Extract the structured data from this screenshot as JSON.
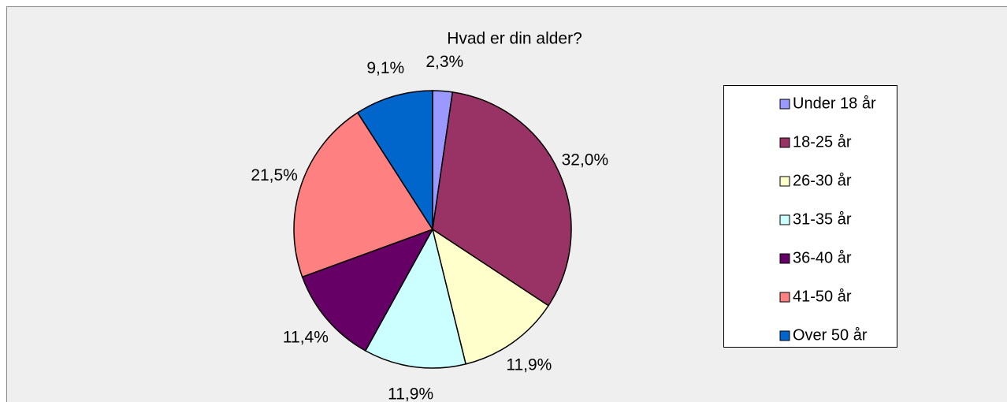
{
  "chart_data": {
    "type": "pie",
    "title": "Hvad er din alder?",
    "categories": [
      "Under 18 år",
      "18-25 år",
      "26-30 år",
      "31-35 år",
      "36-40 år",
      "41-50 år",
      "Over 50 år"
    ],
    "values": [
      2.3,
      32.0,
      11.9,
      11.9,
      11.4,
      21.5,
      9.1
    ],
    "value_labels": [
      "2,3%",
      "32,0%",
      "11,9%",
      "11,9%",
      "11,4%",
      "21,5%",
      "9,1%"
    ],
    "colors": [
      "#9999ff",
      "#993366",
      "#ffffcc",
      "#ccffff",
      "#660066",
      "#ff8080",
      "#0066cc"
    ],
    "legend": "right"
  }
}
